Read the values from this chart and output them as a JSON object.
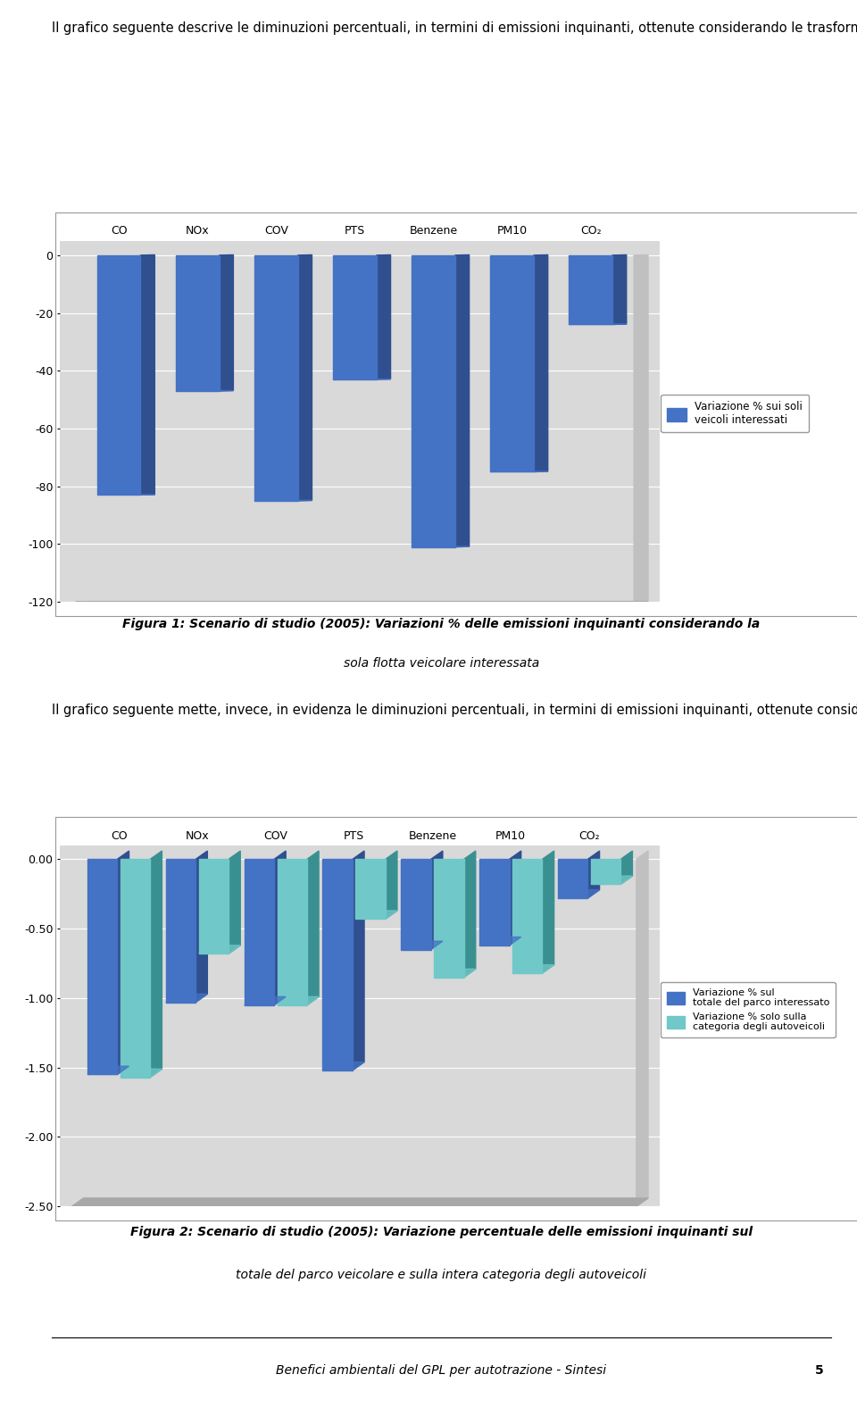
{
  "intro_text": "Il grafico seguente descrive le diminuzioni percentuali, in termini di emissioni inquinanti, ottenute considerando le trasformazioni e sostituzioni rispetto al totale dei soli veicoli trasformati (567.621, prima e dopo). In questo caso si prendono in considerazione solamente le emissioni dei veicoli interessati dalle trasformazioni e sostituzioni senza considerare il contributo del parco veicolare totale circolante.",
  "chart1": {
    "categories": [
      "CO",
      "NOx",
      "COV",
      "PTS",
      "Benzene",
      "PM10",
      "CO₂"
    ],
    "values": [
      -83.0,
      -47.0,
      -85.0,
      -43.0,
      -101.0,
      -75.0,
      -24.0
    ],
    "bar_color": "#4472C4",
    "bar_shadow_color": "#2F4F8F",
    "ylim": [
      -120,
      5
    ],
    "yticks": [
      0,
      -20,
      -40,
      -60,
      -80,
      -100,
      -120
    ],
    "legend_label": "Variazione % sui soli\nveicoli interessati",
    "bg_color": "#D9D9D9",
    "floor_color": "#A8A8A8"
  },
  "figura1_line1": "Figura 1: Scenario di studio (2005): Variazioni % delle emissioni inquinanti considerando la",
  "figura1_line2": "sola flotta veicolare interessata",
  "between_text": "Il grafico seguente mette, invece, in evidenza le diminuzioni percentuali, in termini di emissioni inquinanti, ottenute considerando le trasformazioni e sostituzioni rispetto al totale del parco veicolare italiano ed al totale degli autoveicoli presenti nel parco.",
  "chart2": {
    "categories": [
      "CO",
      "NOx",
      "COV",
      "PTS",
      "Benzene",
      "PM10",
      "CO₂"
    ],
    "values_blue": [
      -1.55,
      -1.03,
      -1.05,
      -1.52,
      -0.65,
      -0.62,
      -0.28
    ],
    "values_cyan": [
      -1.57,
      -0.68,
      -1.05,
      -0.43,
      -0.85,
      -0.82,
      -0.18
    ],
    "bar_color_blue": "#4472C4",
    "bar_color_cyan": "#70C8C8",
    "bar_shadow_blue": "#2F4F8F",
    "bar_shadow_cyan": "#3A9090",
    "ylim": [
      -2.5,
      0.1
    ],
    "yticks": [
      0.0,
      -0.5,
      -1.0,
      -1.5,
      -2.0,
      -2.5
    ],
    "legend_label_blue": "Variazione % sul\ntotale del parco interessato",
    "legend_label_cyan": "Variazione % solo sulla\ncategoria degli autoveicoli",
    "bg_color": "#D9D9D9",
    "floor_color": "#A8A8A8"
  },
  "figura2_bold": "Figura 2:",
  "figura2_italic": " Scenario di studio (2005): Variazione percentuale delle emissioni inquinanti sul",
  "figura2_line2": "totale del parco veicolare e sulla intera categoria degli autoveicoli",
  "footer_text": "Benefici ambientali del GPL per autotrazione - Sintesi",
  "footer_page": "5",
  "page_bg": "#FFFFFF"
}
